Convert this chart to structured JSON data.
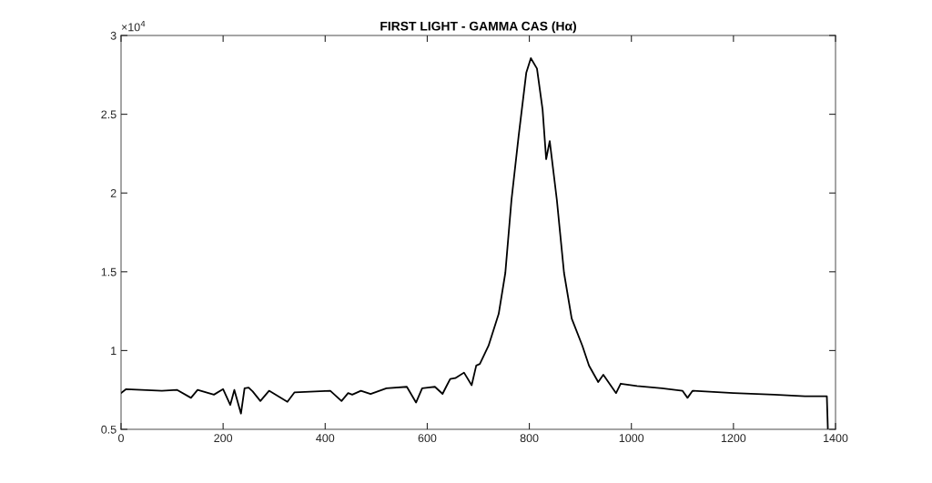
{
  "chart_data": {
    "type": "line",
    "title": "FIRST LIGHT - GAMMA CAS (Hα)",
    "x": [
      0,
      10,
      40,
      80,
      110,
      137,
      150,
      182,
      200,
      214,
      222,
      235,
      242,
      250,
      258,
      273,
      290,
      326,
      340,
      380,
      410,
      432,
      445,
      453,
      470,
      489,
      520,
      560,
      578,
      590,
      601,
      615,
      630,
      637,
      645,
      655,
      672,
      687,
      696,
      703,
      720,
      740,
      753,
      765,
      779,
      794,
      803,
      815,
      826,
      833,
      840,
      854,
      868,
      883,
      904,
      917,
      935,
      945,
      970,
      979,
      1011,
      1060,
      1100,
      1110,
      1120,
      1200,
      1280,
      1340,
      1383,
      1385
    ],
    "series": [
      {
        "color": "#000000",
        "values": [
          0.73,
          0.755,
          0.75,
          0.745,
          0.75,
          0.7,
          0.75,
          0.72,
          0.755,
          0.655,
          0.75,
          0.6,
          0.76,
          0.765,
          0.74,
          0.68,
          0.745,
          0.675,
          0.735,
          0.74,
          0.745,
          0.68,
          0.73,
          0.72,
          0.745,
          0.725,
          0.76,
          0.77,
          0.67,
          0.76,
          0.765,
          0.77,
          0.725,
          0.77,
          0.82,
          0.825,
          0.86,
          0.78,
          0.905,
          0.915,
          1.03,
          1.233,
          1.493,
          1.955,
          2.36,
          2.763,
          2.856,
          2.79,
          2.53,
          2.215,
          2.33,
          1.955,
          1.493,
          1.204,
          1.03,
          0.904,
          0.8,
          0.846,
          0.73,
          0.79,
          0.775,
          0.76,
          0.745,
          0.7,
          0.745,
          0.73,
          0.72,
          0.71,
          0.71,
          0.5
        ]
      }
    ],
    "xlim": [
      0,
      1400
    ],
    "xticks": [
      0,
      200,
      400,
      600,
      800,
      1000,
      1200,
      1400
    ],
    "ylim": [
      0.5,
      3
    ],
    "yticks": [
      0.5,
      1,
      1.5,
      2,
      2.5,
      3
    ],
    "annotations": [
      "×10$^{4}$"
    ],
    "grid": false,
    "legend": false,
    "marker": "none",
    "line_style": "solid"
  }
}
